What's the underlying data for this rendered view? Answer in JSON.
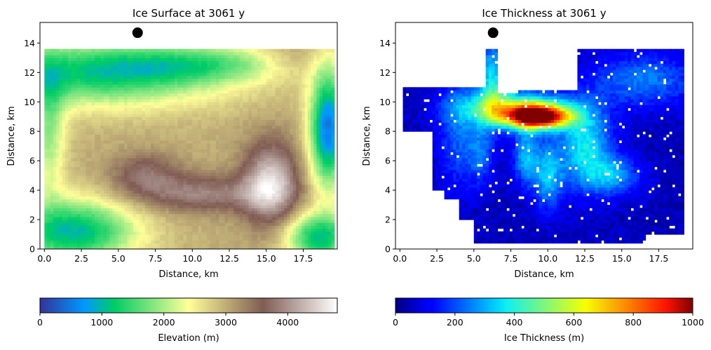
{
  "chart_data": [
    {
      "type": "heatmap",
      "title": "Ice Surface at 3061 y",
      "xlabel": "Distance, km",
      "ylabel": "Distance, km",
      "xlim": [
        -0.3,
        19.8
      ],
      "ylim": [
        0,
        15.4
      ],
      "xticks": [
        "0.0",
        "2.5",
        "5.0",
        "7.5",
        "10.0",
        "12.5",
        "15.0",
        "17.5"
      ],
      "xtick_values": [
        0,
        2.5,
        5,
        7.5,
        10,
        12.5,
        15,
        17.5
      ],
      "yticks": [
        "0",
        "2",
        "4",
        "6",
        "8",
        "10",
        "12",
        "14"
      ],
      "ytick_values": [
        0,
        2,
        4,
        6,
        8,
        10,
        12,
        14
      ],
      "grid_extent": {
        "x": [
          0,
          19.6
        ],
        "y": [
          0,
          13.6
        ]
      },
      "colormap": "terrain",
      "marker": {
        "x": 6.3,
        "y": 14.7,
        "color": "#000000"
      },
      "colorbar": {
        "label": "Elevation (m)",
        "range": [
          0,
          4800
        ],
        "ticks": [
          "0",
          "1000",
          "2000",
          "3000",
          "4000"
        ],
        "tick_values": [
          0,
          1000,
          2000,
          3000,
          4000
        ]
      }
    },
    {
      "type": "heatmap",
      "title": "Ice Thickness at 3061 y",
      "xlabel": "Distance, km",
      "ylabel": "Distance, km",
      "xlim": [
        -0.3,
        19.8
      ],
      "ylim": [
        0,
        15.4
      ],
      "xticks": [
        "0.0",
        "2.5",
        "5.0",
        "7.5",
        "10.0",
        "12.5",
        "15.0",
        "17.5"
      ],
      "xtick_values": [
        0,
        2.5,
        5,
        7.5,
        10,
        12.5,
        15,
        17.5
      ],
      "yticks": [
        "0",
        "2",
        "4",
        "6",
        "8",
        "10",
        "12",
        "14"
      ],
      "ytick_values": [
        0,
        2,
        4,
        6,
        8,
        10,
        12,
        14
      ],
      "grid_extent": {
        "x": [
          0,
          19.6
        ],
        "y": [
          0,
          13.6
        ]
      },
      "colormap": "jet",
      "marker": {
        "x": 6.3,
        "y": 14.7,
        "color": "#000000"
      },
      "colorbar": {
        "label": "Ice Thickness (m)",
        "range": [
          0,
          1000
        ],
        "ticks": [
          "0",
          "200",
          "400",
          "600",
          "800",
          "1000"
        ],
        "tick_values": [
          0,
          200,
          400,
          600,
          800,
          1000
        ]
      }
    }
  ]
}
